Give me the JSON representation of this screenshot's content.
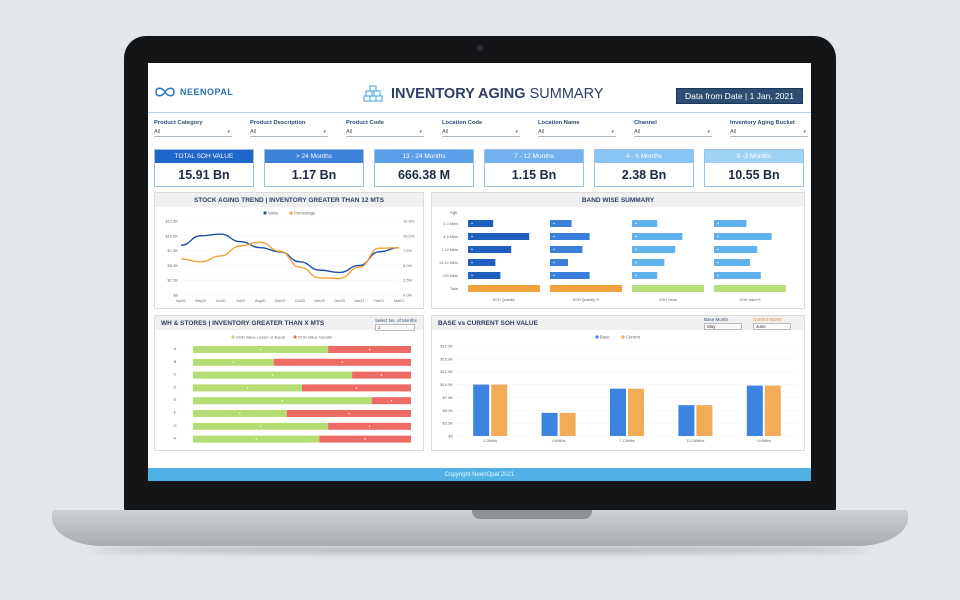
{
  "brand": {
    "name": "NEENOPAL"
  },
  "header": {
    "title_bold": "INVENTORY AGING",
    "title_rest": "SUMMARY",
    "date_badge": "Data from Date | 1 Jan, 2021"
  },
  "filters": [
    {
      "label": "Product Category",
      "value": "All"
    },
    {
      "label": "Product Description",
      "value": "All"
    },
    {
      "label": "Product Code",
      "value": "All"
    },
    {
      "label": "Location Code",
      "value": "All"
    },
    {
      "label": "Location Name",
      "value": "All"
    },
    {
      "label": "Channel",
      "value": "All"
    },
    {
      "label": "Inventory Aging Bucket",
      "value": "All"
    }
  ],
  "kpis": [
    {
      "label": "TOTAL SOH VALUE",
      "value": "15.91 Bn",
      "color": "#1f66c9"
    },
    {
      "label": "> 24 Months",
      "value": "1.17 Bn",
      "color": "#3c82db"
    },
    {
      "label": "13 - 24 Months",
      "value": "666.38 M",
      "color": "#5b9ee8"
    },
    {
      "label": "7 - 12 Months",
      "value": "1.15 Bn",
      "color": "#72b0ef"
    },
    {
      "label": "4 - 6 Months",
      "value": "2.38 Bn",
      "color": "#87c3f3"
    },
    {
      "label": "0 -3 Months",
      "value": "10.55 Bn",
      "color": "#9fd3f6"
    }
  ],
  "panels": {
    "trend_title": "STOCK AGING TREND | INVENTORY GREATER THAN 12 MTS",
    "band_title": "BAND WISE SUMMARY",
    "wh_title": "WH & STORES | INVENTORY GREATER THAN X MTS",
    "wh_select_label": "Select No. of Months",
    "wh_select_value": "2",
    "base_title": "BASE vs CURRENT SOH VALUE",
    "base_month_label": "Base Month",
    "base_month_value": "May",
    "current_month_label": "Current Month",
    "current_month_value": "June"
  },
  "chart_data": [
    {
      "type": "line",
      "title": "STOCK AGING TREND | INVENTORY GREATER THAN 12 MTS",
      "x": [
        "Apr20",
        "May20",
        "Jun20",
        "Jul20",
        "Aug20",
        "Sep20",
        "Oct20",
        "Nov20",
        "Dec20",
        "Jan21",
        "Feb21",
        "Mar21"
      ],
      "series": [
        {
          "name": "Value",
          "color": "#1f4fa8",
          "values": [
            8.4,
            10.0,
            10.3,
            9.0,
            8.0,
            7.3,
            5.6,
            4.2,
            3.8,
            5.0,
            7.3,
            8.0
          ]
        },
        {
          "name": "Percentage",
          "color": "#f0a23c",
          "values": [
            6.1,
            5.6,
            6.6,
            8.3,
            8.9,
            7.4,
            4.7,
            2.9,
            2.8,
            4.7,
            7.9,
            8.0
          ]
        }
      ],
      "y_left_ticks": [
        "$12.5K",
        "$10.0K",
        "$7.5K",
        "$5.0K",
        "$2.5K",
        "$0"
      ],
      "y_right_ticks": [
        "12.5%",
        "10.0%",
        "7.5%",
        "5.0%",
        "2.5%",
        "0.0%"
      ],
      "ylim": [
        0,
        12.5
      ]
    },
    {
      "type": "bar",
      "title": "BAND WISE SUMMARY",
      "categories": [
        "0-3 Mths",
        "4-6 Mths",
        "7-12 Mths",
        "13-24 Mths",
        ">24 Mths",
        "Total"
      ],
      "header_label": "Age",
      "metrics": [
        {
          "name": "SOH Quantity",
          "color": "#1f5fbf",
          "values": [
            0.35,
            0.85,
            0.6,
            0.38,
            0.45,
            1.0
          ]
        },
        {
          "name": "SOH Quantity %",
          "color": "#3a80d8",
          "values": [
            0.3,
            0.55,
            0.45,
            0.25,
            0.55,
            1.0
          ]
        },
        {
          "name": "SOH Value",
          "color": "#5fb1ee",
          "values": [
            0.35,
            0.7,
            0.6,
            0.45,
            0.35,
            1.0
          ]
        },
        {
          "name": "SOH Value%",
          "color": "#5fb1ee",
          "values": [
            0.45,
            0.8,
            0.6,
            0.5,
            0.65,
            1.0
          ]
        }
      ],
      "total_colors": [
        "#f0a23c",
        "#f0a23c",
        "#b8dd7a",
        "#b8dd7a"
      ]
    },
    {
      "type": "bar",
      "title": "WH & STORES | INVENTORY GREATER THAN X MTS",
      "categories": [
        "A",
        "B",
        "C",
        "D",
        "E",
        "F",
        "G",
        "H"
      ],
      "series": [
        {
          "name": "SOH Value Lesser or Equal",
          "color": "#b6dc74",
          "values": [
            0.62,
            0.37,
            0.73,
            0.5,
            0.82,
            0.43,
            0.62,
            0.58
          ]
        },
        {
          "name": "SOH Value Greater",
          "color": "#ee6a64",
          "values": [
            0.38,
            0.63,
            0.27,
            0.5,
            0.18,
            0.57,
            0.38,
            0.42
          ]
        }
      ],
      "stacked_percent": true
    },
    {
      "type": "bar",
      "title": "BASE vs CURRENT SOH VALUE",
      "categories": [
        "0-3Mths",
        "4-6Mths",
        "7-12Mths",
        "13-24Mths",
        ">24Mths"
      ],
      "series": [
        {
          "name": "Base",
          "color": "#3d84e0",
          "values": [
            10.0,
            4.5,
            9.2,
            6.0,
            9.8
          ]
        },
        {
          "name": "Current",
          "color": "#f2ab57",
          "values": [
            10.0,
            4.5,
            9.2,
            6.0,
            9.8
          ]
        }
      ],
      "y_ticks": [
        "$17.5K",
        "$15.0K",
        "$12.5K",
        "$10.0K",
        "$7.5K",
        "$5.0K",
        "$2.5K",
        "$0"
      ],
      "ylim": [
        0,
        17.5
      ]
    }
  ],
  "footer": {
    "text": "Copyright NeenOpal 2021"
  }
}
